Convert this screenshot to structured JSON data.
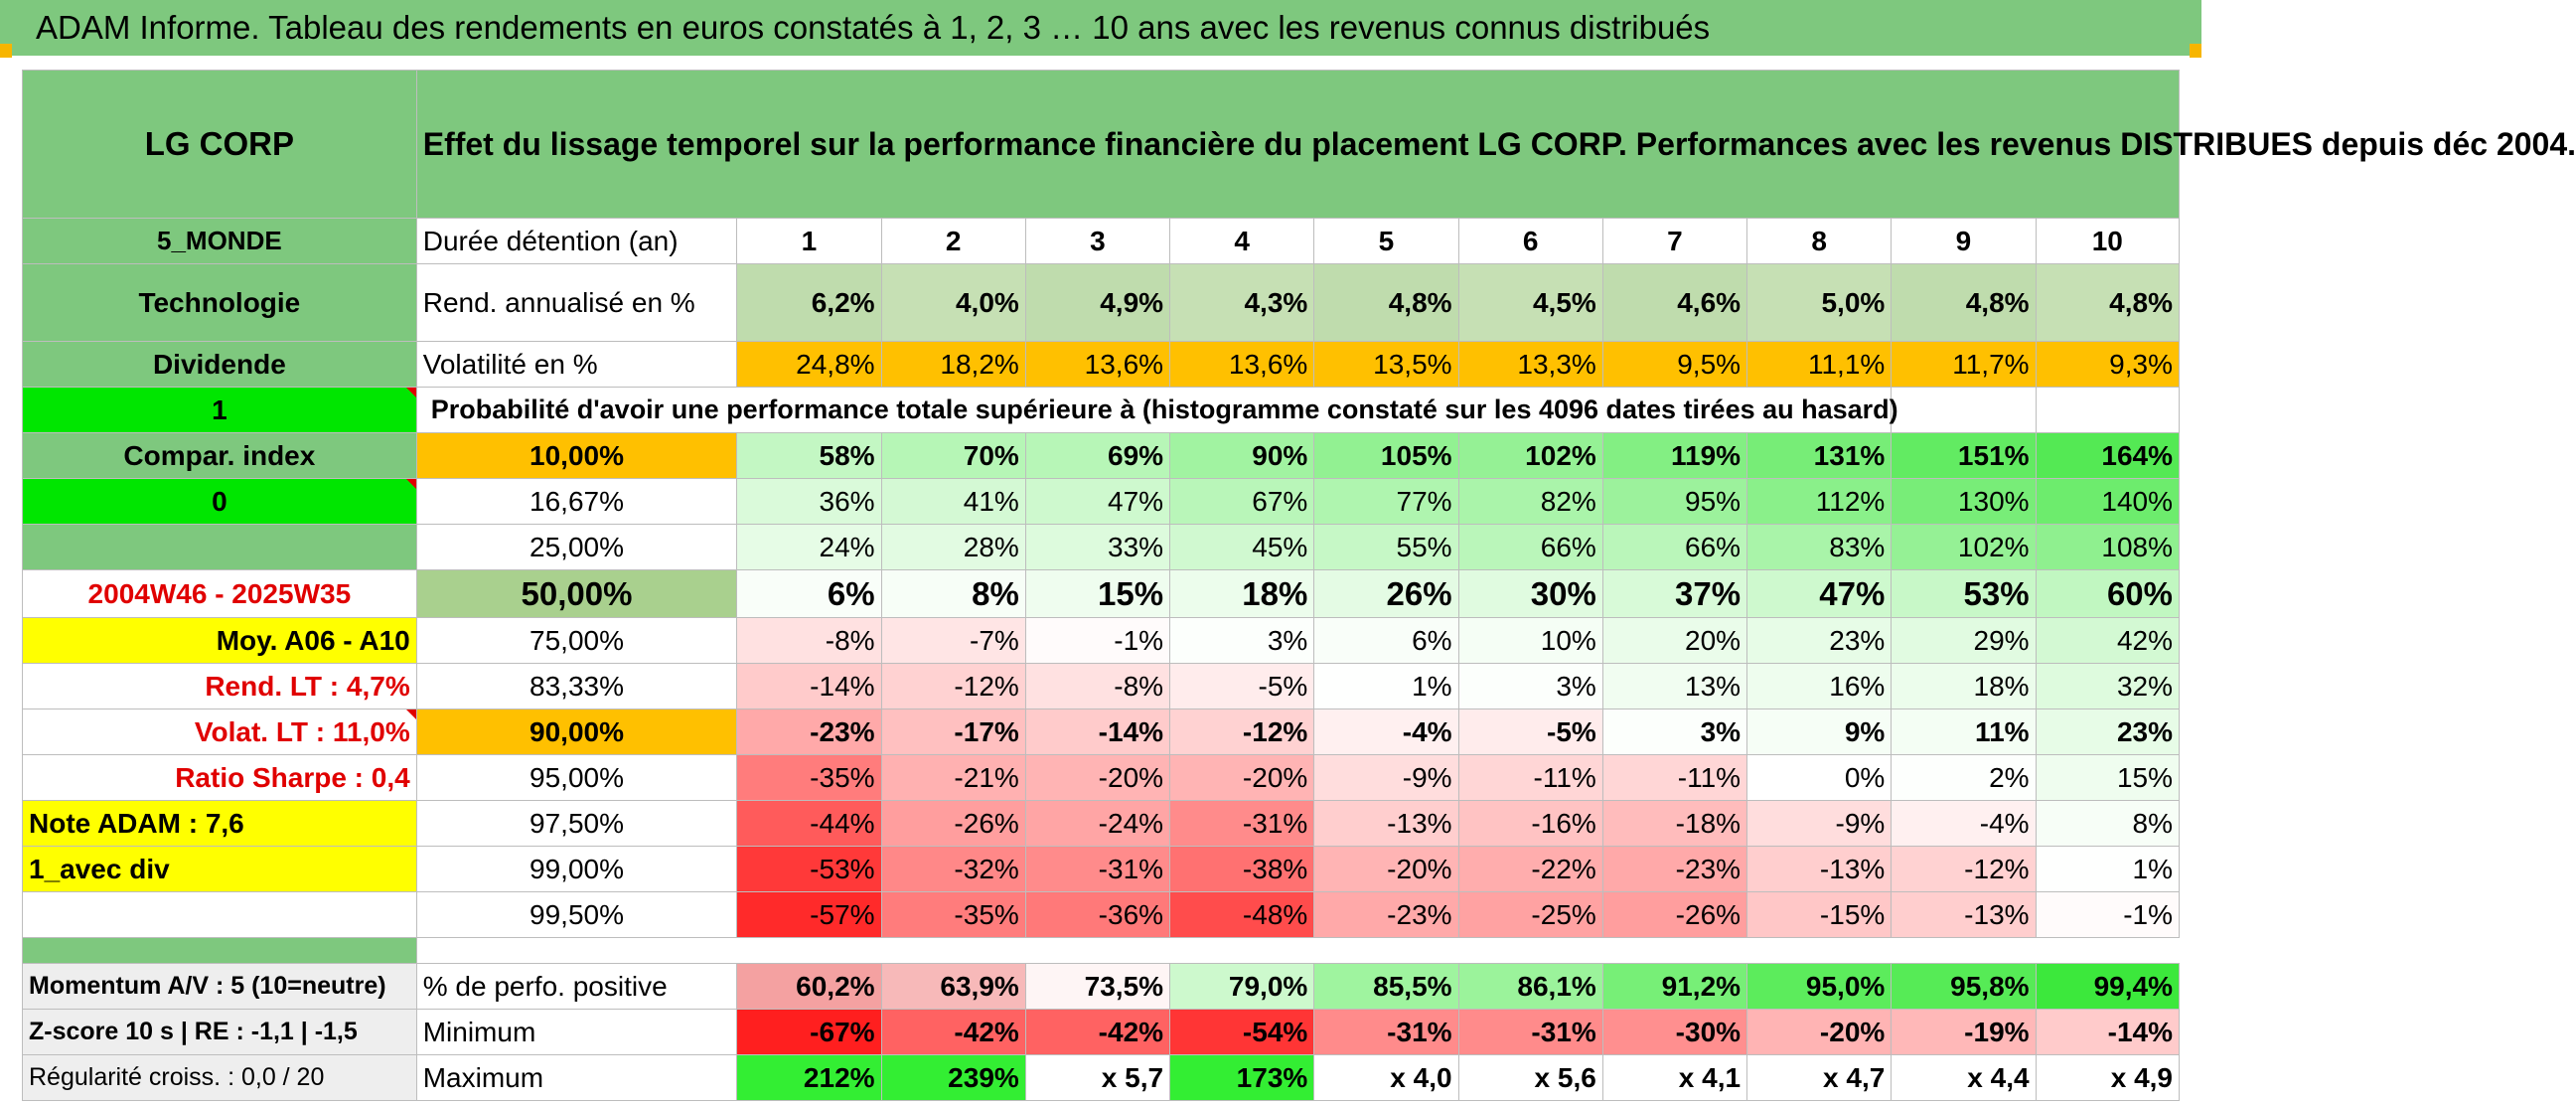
{
  "title": "ADAM Informe. Tableau des rendements en euros constatés à 1, 2, 3 … 10 ans avec les revenus connus distribués",
  "header": {
    "fund": "LG CORP",
    "description": "Effet du lissage temporel sur la performance financière du placement LG CORP. Performances avec les revenus DISTRIBUES depuis déc 2004."
  },
  "side": {
    "zone": "5_MONDE",
    "sector": "Technologie",
    "type": "Dividende",
    "flag1": "1",
    "compar": "Compar. index",
    "flag0": "0",
    "blank": "",
    "period": "2004W46 - 2025W35",
    "moy": "Moy. A06 - A10",
    "rend_lt": "Rend. LT :   4,7%",
    "volat_lt": "Volat. LT :   11,0%",
    "sharpe": "Ratio Sharpe :   0,4",
    "note": "Note ADAM : 7,6",
    "div": "1_avec div",
    "momentum": "Momentum A/V : 5 (10=neutre)",
    "zscore": "Z-score 10 s | RE : -1,1 | -1,5",
    "regularite": "Régularité croiss. : 0,0 / 20"
  },
  "rows": {
    "duree": {
      "label": "Durée détention (an)",
      "values": [
        "1",
        "2",
        "3",
        "4",
        "5",
        "6",
        "7",
        "8",
        "9",
        "10"
      ]
    },
    "rend": {
      "label": "Rend. annualisé en %",
      "values": [
        "6,2%",
        "4,0%",
        "4,9%",
        "4,3%",
        "4,8%",
        "4,5%",
        "4,6%",
        "5,0%",
        "4,8%",
        "4,8%"
      ]
    },
    "vol": {
      "label": "Volatilité en %",
      "values": [
        "24,8%",
        "18,2%",
        "13,6%",
        "13,6%",
        "13,5%",
        "13,3%",
        "9,5%",
        "11,1%",
        "11,7%",
        "9,3%"
      ]
    },
    "proba_title": "Probabilité d'avoir une performance totale supérieure à (histogramme constaté sur les 4096 dates tirées au hasard)",
    "quantiles": [
      {
        "label": "10,00%",
        "values": [
          "58%",
          "70%",
          "69%",
          "90%",
          "105%",
          "102%",
          "119%",
          "131%",
          "151%",
          "164%"
        ]
      },
      {
        "label": "16,67%",
        "values": [
          "36%",
          "41%",
          "47%",
          "67%",
          "77%",
          "82%",
          "95%",
          "112%",
          "130%",
          "140%"
        ]
      },
      {
        "label": "25,00%",
        "values": [
          "24%",
          "28%",
          "33%",
          "45%",
          "55%",
          "66%",
          "66%",
          "83%",
          "102%",
          "108%"
        ]
      },
      {
        "label": "50,00%",
        "values": [
          "6%",
          "8%",
          "15%",
          "18%",
          "26%",
          "30%",
          "37%",
          "47%",
          "53%",
          "60%"
        ]
      },
      {
        "label": "75,00%",
        "values": [
          "-8%",
          "-7%",
          "-1%",
          "3%",
          "6%",
          "10%",
          "20%",
          "23%",
          "29%",
          "42%"
        ]
      },
      {
        "label": "83,33%",
        "values": [
          "-14%",
          "-12%",
          "-8%",
          "-5%",
          "1%",
          "3%",
          "13%",
          "16%",
          "18%",
          "32%"
        ]
      },
      {
        "label": "90,00%",
        "values": [
          "-23%",
          "-17%",
          "-14%",
          "-12%",
          "-4%",
          "-5%",
          "3%",
          "9%",
          "11%",
          "23%"
        ]
      },
      {
        "label": "95,00%",
        "values": [
          "-35%",
          "-21%",
          "-20%",
          "-20%",
          "-9%",
          "-11%",
          "-11%",
          "0%",
          "2%",
          "15%"
        ]
      },
      {
        "label": "97,50%",
        "values": [
          "-44%",
          "-26%",
          "-24%",
          "-31%",
          "-13%",
          "-16%",
          "-18%",
          "-9%",
          "-4%",
          "8%"
        ]
      },
      {
        "label": "99,00%",
        "values": [
          "-53%",
          "-32%",
          "-31%",
          "-38%",
          "-20%",
          "-22%",
          "-23%",
          "-13%",
          "-12%",
          "1%"
        ]
      },
      {
        "label": "99,50%",
        "values": [
          "-57%",
          "-35%",
          "-36%",
          "-48%",
          "-23%",
          "-25%",
          "-26%",
          "-15%",
          "-13%",
          "-1%"
        ]
      }
    ],
    "positive": {
      "label": "% de perfo. positive",
      "values": [
        "60,2%",
        "63,9%",
        "73,5%",
        "79,0%",
        "85,5%",
        "86,1%",
        "91,2%",
        "95,0%",
        "95,8%",
        "99,4%"
      ]
    },
    "minimum": {
      "label": "Minimum",
      "values": [
        "-67%",
        "-42%",
        "-42%",
        "-54%",
        "-31%",
        "-31%",
        "-30%",
        "-20%",
        "-19%",
        "-14%"
      ]
    },
    "maximum": {
      "label": "Maximum",
      "values": [
        "212%",
        "239%",
        "x 5,7",
        "173%",
        "x 4,0",
        "x 5,6",
        "x 4,1",
        "x 4,7",
        "x 4,4",
        "x 4,9"
      ]
    }
  },
  "colors": {
    "header_green": "#7ec87e",
    "bright_green": "#00e600",
    "yellow": "#ffff00",
    "orange": "#ffc000",
    "light_green_rend": "#c6e0b4",
    "red_text": "#e00000"
  }
}
